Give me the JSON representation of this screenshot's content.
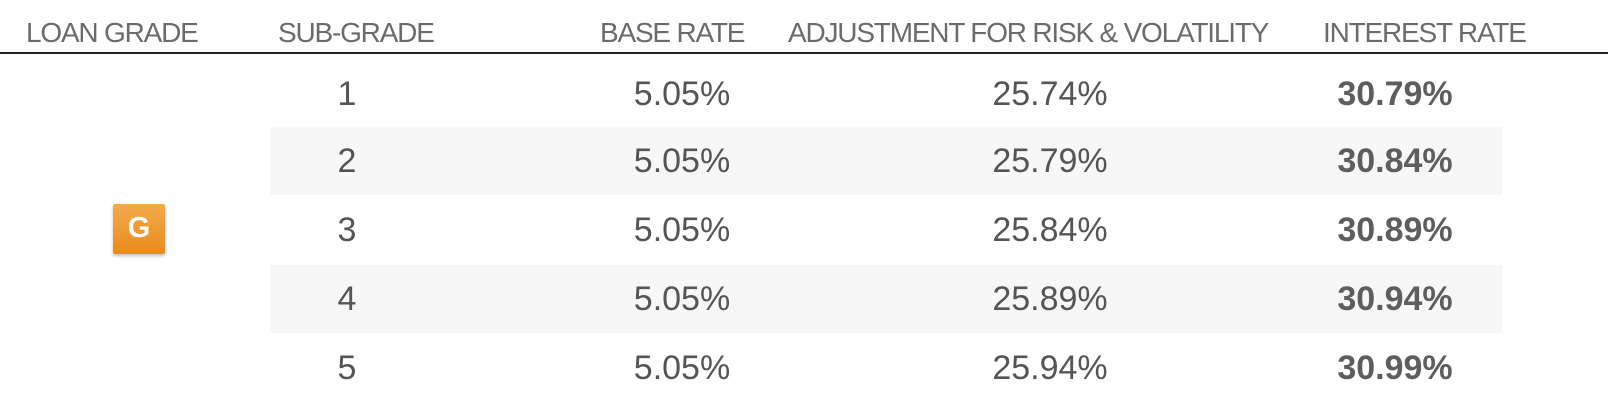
{
  "table": {
    "headers": {
      "loan_grade": "LOAN GRADE",
      "sub_grade": "SUB-GRADE",
      "base_rate": "BASE RATE",
      "adjustment": "ADJUSTMENT FOR RISK & VOLATILITY",
      "interest_rate": "INTEREST RATE"
    },
    "grade": "G",
    "rows": [
      {
        "sub_grade": "1",
        "base_rate": "5.05%",
        "adjustment": "25.74%",
        "interest_rate": "30.79%"
      },
      {
        "sub_grade": "2",
        "base_rate": "5.05%",
        "adjustment": "25.79%",
        "interest_rate": "30.84%"
      },
      {
        "sub_grade": "3",
        "base_rate": "5.05%",
        "adjustment": "25.84%",
        "interest_rate": "30.89%"
      },
      {
        "sub_grade": "4",
        "base_rate": "5.05%",
        "adjustment": "25.89%",
        "interest_rate": "30.94%"
      },
      {
        "sub_grade": "5",
        "base_rate": "5.05%",
        "adjustment": "25.94%",
        "interest_rate": "30.99%"
      }
    ]
  },
  "colors": {
    "badge": "#f0a03a",
    "row_shade": "#f7f7f7",
    "header_rule": "#222222"
  }
}
